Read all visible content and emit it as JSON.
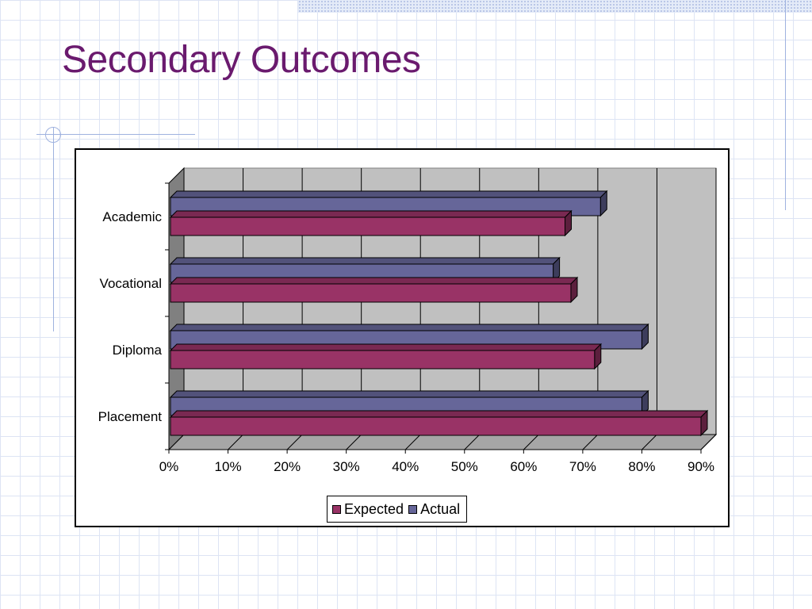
{
  "slide": {
    "title": "Secondary Outcomes"
  },
  "colors": {
    "title": "#6a1a6e",
    "expected": "#993366",
    "actual": "#666699",
    "plot_background": "#c0c0c0"
  },
  "chart_data": {
    "type": "bar",
    "orientation": "horizontal",
    "style": "3d-clustered",
    "categories": [
      "Academic",
      "Vocational",
      "Diploma",
      "Placement"
    ],
    "series": [
      {
        "name": "Expected",
        "values": [
          67,
          68,
          72,
          90
        ]
      },
      {
        "name": "Actual",
        "values": [
          73,
          65,
          80,
          80
        ]
      }
    ],
    "xlim": [
      0,
      90
    ],
    "x_ticks": [
      "0%",
      "10%",
      "20%",
      "30%",
      "40%",
      "50%",
      "60%",
      "70%",
      "80%",
      "90%"
    ],
    "x_tick_values": [
      0,
      10,
      20,
      30,
      40,
      50,
      60,
      70,
      80,
      90
    ],
    "grid": true,
    "legend_position": "bottom",
    "title": "",
    "xlabel": "",
    "ylabel": ""
  }
}
